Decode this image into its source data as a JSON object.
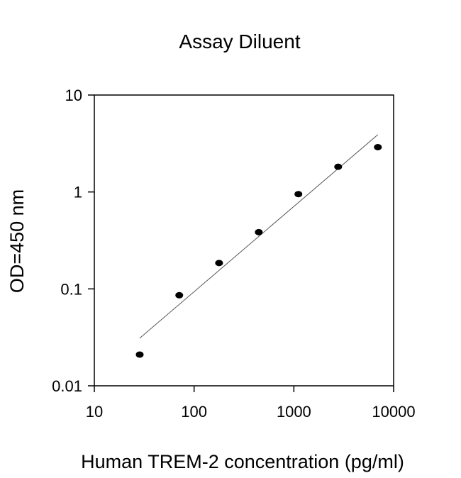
{
  "chart_data": {
    "type": "scatter",
    "title": "Assay Diluent",
    "xlabel": "Human TREM-2 concentration (pg/ml)",
    "ylabel": "OD=450 nm",
    "xscale": "log",
    "yscale": "log",
    "xlim": [
      10,
      10000
    ],
    "ylim": [
      0.01,
      10
    ],
    "xticks": [
      10,
      100,
      1000,
      10000
    ],
    "xtick_labels": [
      "10",
      "100",
      "1000",
      "10000"
    ],
    "yticks": [
      0.01,
      0.1,
      1,
      10
    ],
    "ytick_labels": [
      "0.01",
      "0.1",
      "1",
      "10"
    ],
    "grid": false,
    "legend": "none",
    "series": [
      {
        "x": [
          28.5,
          71,
          178,
          445,
          1110,
          2780,
          6950
        ],
        "y": [
          0.021,
          0.086,
          0.185,
          0.385,
          0.95,
          1.82,
          2.9
        ],
        "color": "#000000"
      }
    ],
    "fit_line": {
      "x": [
        28.5,
        6950
      ],
      "y": [
        0.031,
        3.9
      ],
      "color": "#555555"
    }
  }
}
